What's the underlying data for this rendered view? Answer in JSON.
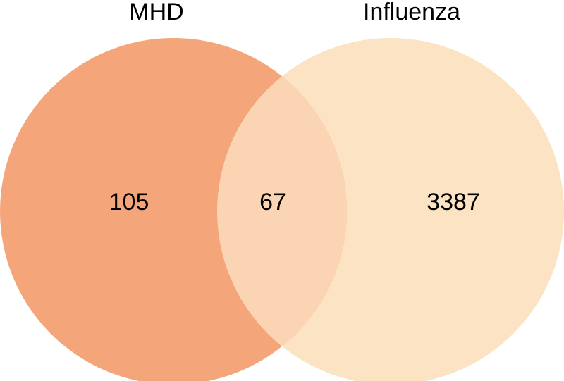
{
  "sets": [
    {
      "name": "MHD",
      "color": "#f4a57a"
    },
    {
      "name": "Influenza",
      "color": "#fbe3c3"
    }
  ],
  "regions": {
    "mhd_only": "105",
    "intersection": "67",
    "influenza_only": "3387"
  },
  "intersection_color": "#fbd5b3"
}
